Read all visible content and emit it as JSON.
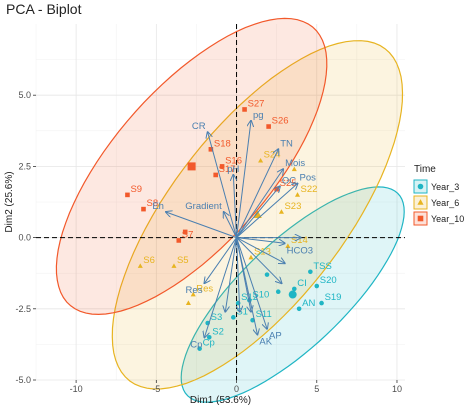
{
  "chart_data": {
    "type": "scatter",
    "title": "PCA - Biplot",
    "xlabel": "Dim1 (53.6%)",
    "ylabel": "Dim2 (25.6%)",
    "xlim": [
      -12.5,
      10.5
    ],
    "ylim": [
      -5.0,
      7.5
    ],
    "xticks": [
      -10,
      -5,
      0,
      5,
      10
    ],
    "xtick_labels": [
      "-10",
      "-5",
      "0",
      "5",
      "10"
    ],
    "yticks": [
      -5,
      -2.5,
      0,
      2.5,
      5
    ],
    "ytick_labels": [
      "-5.0",
      "-2.5",
      "0.0",
      "2.5",
      "5.0"
    ],
    "grid": true,
    "legend": {
      "title": "Time",
      "placement": "right",
      "entries": [
        {
          "name": "Year_3",
          "color": "#1fb5c4",
          "shape": "circle"
        },
        {
          "name": "Year_6",
          "color": "#e7b421",
          "shape": "triangle"
        },
        {
          "name": "Year_10",
          "color": "#f2592b",
          "shape": "square"
        }
      ]
    },
    "groups": [
      {
        "name": "Year_3",
        "color": "#1fb5c4",
        "ellipse": {
          "center": [
            3.5,
            -2.0
          ],
          "rx": 7.6,
          "ry": 2.2,
          "angle_deg": 25
        },
        "points": [
          {
            "label": "S3",
            "x": -1.8,
            "y": -3.0
          },
          {
            "label": "S2",
            "x": -1.7,
            "y": -3.5
          },
          {
            "label": "Cp",
            "x": -2.3,
            "y": -3.9
          },
          {
            "label": "S1",
            "x": -0.2,
            "y": -2.8
          },
          {
            "label": "S12",
            "x": 0.1,
            "y": -2.3
          },
          {
            "label": "S10",
            "x": 0.8,
            "y": -2.2
          },
          {
            "label": "S11",
            "x": 1.0,
            "y": -2.9
          },
          {
            "label": "AN",
            "x": 3.9,
            "y": -2.5
          },
          {
            "label": "S20",
            "x": 5.0,
            "y": -1.7
          },
          {
            "label": "S19",
            "x": 5.3,
            "y": -2.3
          },
          {
            "label": "TSS",
            "x": 4.6,
            "y": -1.2
          },
          {
            "label": "CI",
            "x": 3.6,
            "y": -1.8
          },
          {
            "label": "",
            "x": 1.9,
            "y": -1.3
          },
          {
            "label": "",
            "x": 2.6,
            "y": -1.9
          }
        ]
      },
      {
        "name": "Year_6",
        "color": "#e7b421",
        "ellipse": {
          "center": [
            1.3,
            0.8
          ],
          "rx": 10.2,
          "ry": 3.9,
          "angle_deg": 30
        },
        "points": [
          {
            "label": "S24",
            "x": 1.5,
            "y": 2.7
          },
          {
            "label": "S22",
            "x": 3.8,
            "y": 1.5
          },
          {
            "label": "S23",
            "x": 2.8,
            "y": 0.9
          },
          {
            "label": "S14",
            "x": 3.2,
            "y": -0.3
          },
          {
            "label": "S13",
            "x": 0.9,
            "y": -0.7
          },
          {
            "label": "S5",
            "x": -3.9,
            "y": -1.0
          },
          {
            "label": "S6",
            "x": -6.0,
            "y": -1.0
          },
          {
            "label": "Res",
            "x": -2.7,
            "y": -2.0
          },
          {
            "label": "",
            "x": -3.0,
            "y": -2.3
          },
          {
            "label": "",
            "x": 3.6,
            "y": 2.4
          }
        ]
      },
      {
        "name": "Year_10",
        "color": "#f2592b",
        "ellipse": {
          "center": [
            -2.8,
            2.5
          ],
          "rx": 9.3,
          "ry": 3.4,
          "angle_deg": 27
        },
        "points": [
          {
            "label": "S27",
            "x": 0.5,
            "y": 4.5
          },
          {
            "label": "S26",
            "x": 2.0,
            "y": 3.9
          },
          {
            "label": "S18",
            "x": -1.6,
            "y": 3.1
          },
          {
            "label": "S16",
            "x": -0.9,
            "y": 2.5
          },
          {
            "label": "S17",
            "x": -1.3,
            "y": 2.2
          },
          {
            "label": "S25",
            "x": 2.5,
            "y": 1.7
          },
          {
            "label": "S9",
            "x": -6.8,
            "y": 1.5
          },
          {
            "label": "S8",
            "x": -5.8,
            "y": 1.0
          },
          {
            "label": "S7",
            "x": -3.6,
            "y": -0.1
          },
          {
            "label": "",
            "x": -3.2,
            "y": 0.2
          }
        ]
      }
    ],
    "variables": [
      {
        "label": "CR",
        "x": -1.8,
        "y": 3.7
      },
      {
        "label": "pg",
        "x": 0.9,
        "y": 4.1
      },
      {
        "label": "TN",
        "x": 2.6,
        "y": 3.1
      },
      {
        "label": "Mois",
        "x": 2.9,
        "y": 2.4
      },
      {
        "label": "OC",
        "x": 2.7,
        "y": 1.8
      },
      {
        "label": "Pos",
        "x": 3.8,
        "y": 1.9
      },
      {
        "label": "pH",
        "x": -0.2,
        "y": 2.2
      },
      {
        "label": "Gradient",
        "x": -0.8,
        "y": 0.9
      },
      {
        "label": "Eh",
        "x": -4.4,
        "y": 0.9
      },
      {
        "label": "HCO3",
        "x": 3.0,
        "y": -0.2
      },
      {
        "label": "",
        "x": 4.0,
        "y": 0.0
      },
      {
        "label": "",
        "x": 3.0,
        "y": -0.9
      },
      {
        "label": "",
        "x": 2.8,
        "y": -1.6
      },
      {
        "label": "Res",
        "x": -2.0,
        "y": -1.6
      },
      {
        "label": "Cp",
        "x": -2.0,
        "y": -3.5
      },
      {
        "label": "AK",
        "x": 1.3,
        "y": -3.4
      },
      {
        "label": "AP",
        "x": 1.9,
        "y": -3.2
      },
      {
        "label": "",
        "x": 0.9,
        "y": -2.6
      },
      {
        "label": "",
        "x": 0.2,
        "y": -2.6
      },
      {
        "label": "",
        "x": -0.7,
        "y": -2.6
      }
    ]
  }
}
